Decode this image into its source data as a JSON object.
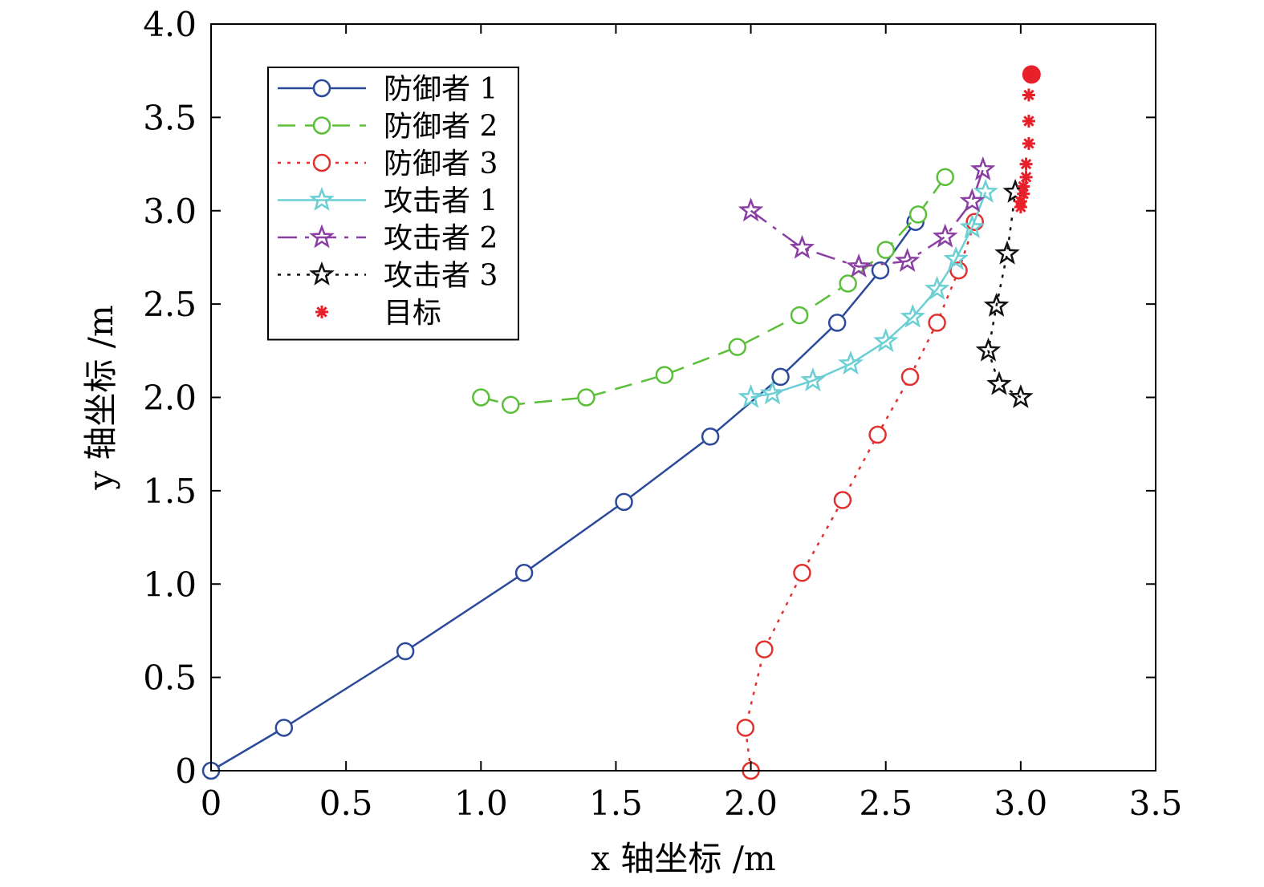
{
  "chart_data": {
    "type": "line",
    "xlabel": "x 轴坐标 /m",
    "ylabel": "y 轴坐标 /m",
    "xlim": [
      0,
      3.5
    ],
    "ylim": [
      0,
      4.0
    ],
    "xticks": [
      {
        "value": 0,
        "label": "0"
      },
      {
        "value": 0.5,
        "label": "0.5"
      },
      {
        "value": 1.0,
        "label": "1.0"
      },
      {
        "value": 1.5,
        "label": "1.5"
      },
      {
        "value": 2.0,
        "label": "2.0"
      },
      {
        "value": 2.5,
        "label": "2.5"
      },
      {
        "value": 3.0,
        "label": "3.0"
      },
      {
        "value": 3.5,
        "label": "3.5"
      }
    ],
    "yticks": [
      {
        "value": 0,
        "label": "0"
      },
      {
        "value": 0.5,
        "label": "0.5"
      },
      {
        "value": 1.0,
        "label": "1.0"
      },
      {
        "value": 1.5,
        "label": "1.5"
      },
      {
        "value": 2.0,
        "label": "2.0"
      },
      {
        "value": 2.5,
        "label": "2.5"
      },
      {
        "value": 3.0,
        "label": "3.0"
      },
      {
        "value": 3.5,
        "label": "3.5"
      },
      {
        "value": 4.0,
        "label": "4.0"
      }
    ],
    "grid": false,
    "legend_position": "top-left",
    "series": [
      {
        "name": "防御者 1",
        "color": "#2b4a9a",
        "dash": "solid",
        "marker": "circle",
        "points": [
          [
            0,
            0
          ],
          [
            0.27,
            0.23
          ],
          [
            0.72,
            0.64
          ],
          [
            1.16,
            1.06
          ],
          [
            1.53,
            1.44
          ],
          [
            1.85,
            1.79
          ],
          [
            2.11,
            2.11
          ],
          [
            2.32,
            2.4
          ],
          [
            2.48,
            2.68
          ],
          [
            2.61,
            2.94
          ]
        ]
      },
      {
        "name": "防御者 2",
        "color": "#5cbf3a",
        "dash": "dashed",
        "marker": "circle",
        "points": [
          [
            1.0,
            2.0
          ],
          [
            1.11,
            1.96
          ],
          [
            1.39,
            2.0
          ],
          [
            1.68,
            2.12
          ],
          [
            1.95,
            2.27
          ],
          [
            2.18,
            2.44
          ],
          [
            2.36,
            2.61
          ],
          [
            2.5,
            2.79
          ],
          [
            2.62,
            2.98
          ],
          [
            2.72,
            3.18
          ]
        ]
      },
      {
        "name": "防御者 3",
        "color": "#e0312e",
        "dash": "dotted",
        "marker": "circle",
        "points": [
          [
            2.0,
            0
          ],
          [
            1.98,
            0.23
          ],
          [
            2.05,
            0.65
          ],
          [
            2.19,
            1.06
          ],
          [
            2.34,
            1.45
          ],
          [
            2.47,
            1.8
          ],
          [
            2.59,
            2.11
          ],
          [
            2.69,
            2.4
          ],
          [
            2.77,
            2.68
          ],
          [
            2.83,
            2.94
          ]
        ]
      },
      {
        "name": "攻击者 1",
        "color": "#6bcfd4",
        "dash": "solid",
        "marker": "star",
        "points": [
          [
            2.0,
            2.0
          ],
          [
            2.08,
            2.02
          ],
          [
            2.23,
            2.09
          ],
          [
            2.37,
            2.18
          ],
          [
            2.5,
            2.3
          ],
          [
            2.6,
            2.43
          ],
          [
            2.69,
            2.58
          ],
          [
            2.76,
            2.74
          ],
          [
            2.82,
            2.91
          ],
          [
            2.87,
            3.1
          ]
        ]
      },
      {
        "name": "攻击者 2",
        "color": "#8b3fa3",
        "dash": "dashdot",
        "marker": "star",
        "points": [
          [
            2.0,
            3.0
          ],
          [
            2.19,
            2.8
          ],
          [
            2.4,
            2.7
          ],
          [
            2.58,
            2.73
          ],
          [
            2.72,
            2.86
          ],
          [
            2.82,
            3.05
          ],
          [
            2.86,
            3.22
          ]
        ]
      },
      {
        "name": "攻击者 3",
        "color": "#111111",
        "dash": "dotted",
        "marker": "star",
        "points": [
          [
            3.0,
            2.0
          ],
          [
            2.92,
            2.07
          ],
          [
            2.88,
            2.25
          ],
          [
            2.91,
            2.49
          ],
          [
            2.95,
            2.77
          ],
          [
            2.98,
            3.1
          ]
        ]
      },
      {
        "name": "目标",
        "color": "#e8202a",
        "dash": "none",
        "marker": "asterisk",
        "points": [
          [
            3.0,
            3.02
          ],
          [
            3.0,
            3.05
          ],
          [
            3.01,
            3.09
          ],
          [
            3.01,
            3.13
          ],
          [
            3.02,
            3.18
          ],
          [
            3.02,
            3.25
          ],
          [
            3.03,
            3.36
          ],
          [
            3.03,
            3.48
          ],
          [
            3.03,
            3.62
          ]
        ],
        "end_point": [
          3.04,
          3.73
        ]
      }
    ]
  }
}
